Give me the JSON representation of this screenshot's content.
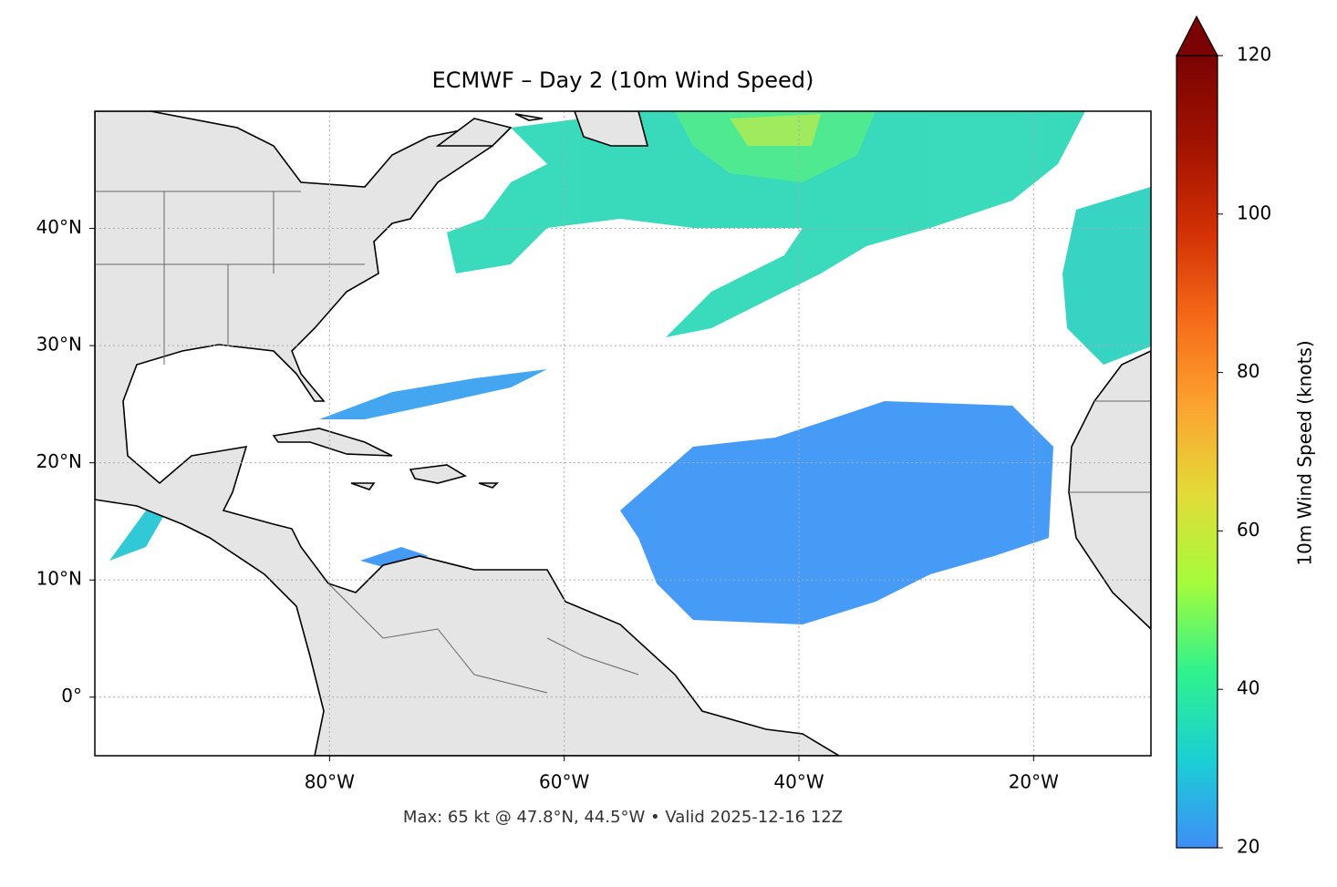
{
  "map": {
    "title": "ECMWF – Day 2 (10m Wind Speed)",
    "annotation": "Max: 65 kt @ 47.8°N, 44.5°W • Valid 2025-12-16 12Z",
    "xlim": [
      -100,
      -10
    ],
    "ylim": [
      -5,
      50
    ],
    "xticks": [
      {
        "value": -80,
        "label": "80°W"
      },
      {
        "value": -60,
        "label": "60°W"
      },
      {
        "value": -40,
        "label": "40°W"
      },
      {
        "value": -20,
        "label": "20°W"
      }
    ],
    "yticks": [
      {
        "value": 0,
        "label": "0°"
      },
      {
        "value": 10,
        "label": "10°N"
      },
      {
        "value": 20,
        "label": "20°N"
      },
      {
        "value": 30,
        "label": "30°N"
      },
      {
        "value": 40,
        "label": "40°N"
      }
    ],
    "grid": true,
    "colorbar": {
      "label": "10m Wind Speed (knots)",
      "lim": [
        20,
        120
      ],
      "ticks": [
        20,
        40,
        60,
        80,
        100,
        120
      ],
      "colors": [
        "#3e8ef7",
        "#1bcfd4",
        "#2ff28d",
        "#a4fc3c",
        "#e2dc38",
        "#fca430",
        "#f66b19",
        "#d23005",
        "#a11201",
        "#7a0403"
      ]
    }
  }
}
